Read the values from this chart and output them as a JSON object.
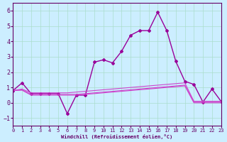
{
  "xlabel": "Windchill (Refroidissement éolien,°C)",
  "bg_color": "#cceeff",
  "grid_color": "#aaddcc",
  "line_color1": "#990099",
  "line_color2": "#cc44cc",
  "line_color3": "#cc44cc",
  "line_color4": "#cc44cc",
  "xlim": [
    0,
    23
  ],
  "ylim": [
    -1.5,
    6.5
  ],
  "yticks": [
    -1,
    0,
    1,
    2,
    3,
    4,
    5,
    6
  ],
  "xticks": [
    0,
    1,
    2,
    3,
    4,
    5,
    6,
    7,
    8,
    9,
    10,
    11,
    12,
    13,
    14,
    15,
    16,
    17,
    18,
    19,
    20,
    21,
    22,
    23
  ],
  "series1_x": [
    0,
    1,
    2,
    3,
    4,
    5,
    6,
    7,
    8,
    9,
    10,
    11,
    12,
    13,
    14,
    15,
    16,
    17,
    18,
    19,
    20,
    21,
    22,
    23
  ],
  "series1_y": [
    0.8,
    1.3,
    0.6,
    0.6,
    0.6,
    0.6,
    -0.7,
    0.5,
    0.5,
    2.65,
    2.8,
    2.6,
    3.35,
    4.4,
    4.7,
    4.7,
    5.9,
    4.7,
    2.7,
    1.4,
    1.2,
    0.05,
    0.9,
    0.1
  ],
  "series2_x": [
    0,
    1,
    2,
    3,
    4,
    5,
    6,
    7,
    8,
    9,
    10,
    11,
    12,
    13,
    14,
    15,
    16,
    17,
    18,
    19,
    20,
    21,
    22,
    23
  ],
  "series2_y": [
    0.8,
    0.9,
    0.65,
    0.65,
    0.65,
    0.65,
    0.65,
    0.7,
    0.75,
    0.8,
    0.85,
    0.9,
    0.95,
    1.0,
    1.05,
    1.1,
    1.15,
    1.2,
    1.25,
    1.3,
    0.1,
    0.1,
    0.1,
    0.1
  ],
  "series3_x": [
    0,
    1,
    2,
    3,
    4,
    5,
    6,
    7,
    8,
    9,
    10,
    11,
    12,
    13,
    14,
    15,
    16,
    17,
    18,
    19,
    20,
    21,
    22,
    23
  ],
  "series3_y": [
    0.8,
    0.85,
    0.55,
    0.55,
    0.55,
    0.55,
    0.55,
    0.55,
    0.6,
    0.65,
    0.7,
    0.75,
    0.8,
    0.85,
    0.9,
    0.95,
    1.0,
    1.05,
    1.1,
    1.15,
    0.05,
    0.05,
    0.05,
    0.05
  ],
  "series4_x": [
    0,
    1,
    2,
    3,
    4,
    5,
    6,
    7,
    8,
    9,
    10,
    11,
    12,
    13,
    14,
    15,
    16,
    17,
    18,
    19,
    20,
    21,
    22,
    23
  ],
  "series4_y": [
    0.8,
    0.82,
    0.5,
    0.5,
    0.5,
    0.5,
    0.5,
    0.5,
    0.55,
    0.6,
    0.65,
    0.7,
    0.75,
    0.8,
    0.85,
    0.9,
    0.95,
    1.0,
    1.05,
    1.1,
    0.0,
    0.0,
    0.0,
    0.0
  ]
}
